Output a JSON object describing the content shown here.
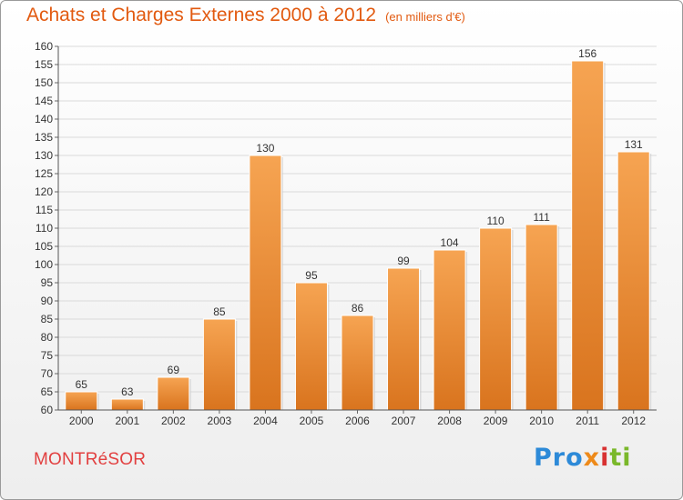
{
  "header": {
    "title": "Achats et Charges Externes 2000 à 2012",
    "unit": "(en milliers d'€)"
  },
  "footer": {
    "commune": "MONTRéSOR",
    "logo": [
      "Pro",
      "x",
      "i",
      "ti"
    ]
  },
  "colors": {
    "bar_top": "#f6a452",
    "bar_bottom": "#d9741e",
    "title": "#e25a10",
    "commune": "#e24040"
  },
  "chart_data": {
    "type": "bar",
    "title": "Achats et Charges Externes 2000 à 2012",
    "xlabel": "",
    "ylabel": "",
    "categories": [
      "2000",
      "2001",
      "2002",
      "2003",
      "2004",
      "2005",
      "2006",
      "2007",
      "2008",
      "2009",
      "2010",
      "2011",
      "2012"
    ],
    "values": [
      65,
      63,
      69,
      85,
      130,
      95,
      86,
      99,
      104,
      110,
      111,
      156,
      131
    ],
    "ylim": [
      60,
      160
    ],
    "ytick_step": 5,
    "grid": true,
    "data_labels": true
  }
}
